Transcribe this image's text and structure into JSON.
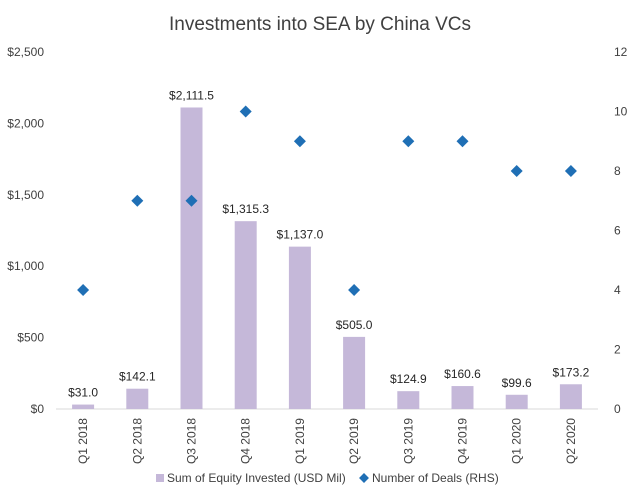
{
  "chart_data": {
    "type": "bar",
    "title": "Investments into SEA by China VCs",
    "categories": [
      "Q1 2018",
      "Q2 2018",
      "Q3 2018",
      "Q4 2018",
      "Q1 2019",
      "Q2 2019",
      "Q3 2019",
      "Q4 2019",
      "Q1 2020",
      "Q2 2020"
    ],
    "series": [
      {
        "name": "Sum of Equity Invested (USD Mil)",
        "type": "bar",
        "axis": "left",
        "values": [
          31.0,
          142.1,
          2111.5,
          1315.3,
          1137.0,
          505.0,
          124.9,
          160.6,
          99.6,
          173.2
        ],
        "data_labels": [
          "$31.0",
          "$142.1",
          "$2,111.5",
          "$1,315.3",
          "$1,137.0",
          "$505.0",
          "$124.9",
          "$160.6",
          "$99.6",
          "$173.2"
        ],
        "color": "#c5b8d9"
      },
      {
        "name": "Number of Deals (RHS)",
        "type": "scatter",
        "marker": "diamond",
        "axis": "right",
        "values": [
          4,
          7,
          7,
          10,
          9,
          4,
          9,
          9,
          8,
          8
        ],
        "color": "#1f6fb5"
      }
    ],
    "y_left": {
      "ylim": [
        0,
        2500
      ],
      "ticks": [
        0,
        500,
        1000,
        1500,
        2000,
        2500
      ],
      "tick_labels": [
        "$0",
        "$500",
        "$1,000",
        "$1,500",
        "$2,000",
        "$2,500"
      ]
    },
    "y_right": {
      "ylim": [
        0,
        12
      ],
      "ticks": [
        0,
        2,
        4,
        6,
        8,
        10,
        12
      ],
      "tick_labels": [
        "0",
        "2",
        "4",
        "6",
        "8",
        "10",
        "12"
      ]
    },
    "grid": false,
    "legend_position": "bottom"
  }
}
